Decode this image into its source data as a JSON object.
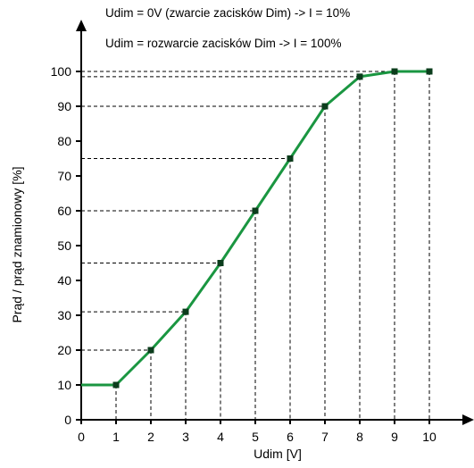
{
  "chart_data": {
    "type": "line",
    "title": "",
    "annotations": [
      "Udim = 0V (zwarcie zacisków Dim) -> I = 10%",
      "Udim = rozwarcie zacisków Dim -> I = 100%"
    ],
    "xlabel": "Udim [V]",
    "ylabel": "Prąd / prąd znamionowy [%]",
    "xlim": [
      0,
      10
    ],
    "ylim": [
      0,
      100
    ],
    "x_ticks": [
      "0",
      "1",
      "2",
      "3",
      "4",
      "5",
      "6",
      "7",
      "8",
      "9",
      "10"
    ],
    "y_ticks": [
      "0",
      "10",
      "20",
      "30",
      "40",
      "50",
      "60",
      "70",
      "80",
      "90",
      "100"
    ],
    "grid": false,
    "reference_lines": "dashed drop lines from each point to both axes",
    "series": [
      {
        "color": "#1a9641",
        "marker_color": "#0b3d1c",
        "x": [
          0,
          1,
          2,
          3,
          4,
          5,
          6,
          7,
          8,
          9,
          10
        ],
        "y": [
          10,
          10,
          20,
          31,
          45,
          60,
          75,
          90,
          98.5,
          100,
          100
        ]
      }
    ]
  }
}
